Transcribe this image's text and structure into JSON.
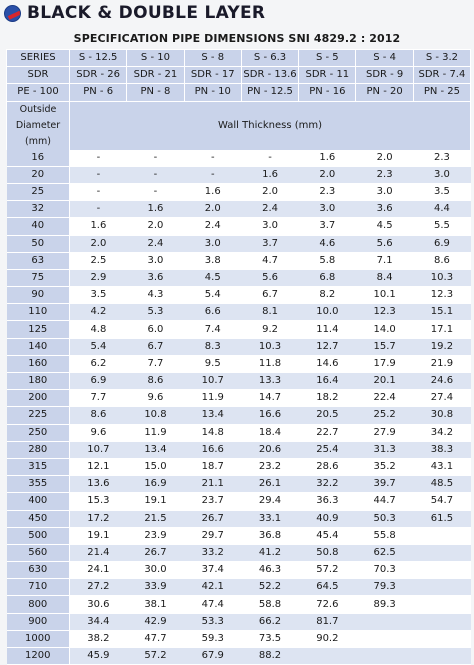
{
  "header": {
    "title": "BLACK & DOUBLE LAYER",
    "subtitle": "SPECIFICATION PIPE DIMENSIONS SNI 4829.2 : 2012"
  },
  "table": {
    "series_label": "SERIES",
    "series": [
      "S - 12.5",
      "S - 10",
      "S - 8",
      "S - 6.3",
      "S - 5",
      "S - 4",
      "S - 3.2"
    ],
    "sdr_label": "SDR",
    "sdr": [
      "SDR - 26",
      "SDR - 21",
      "SDR - 17",
      "SDR - 13.6",
      "SDR - 11",
      "SDR - 9",
      "SDR - 7.4"
    ],
    "pe_label": "PE - 100",
    "pn": [
      "PN - 6",
      "PN - 8",
      "PN - 10",
      "PN - 12.5",
      "PN - 16",
      "PN - 20",
      "PN - 25"
    ],
    "od_label": "Outside Diameter (mm)",
    "wt_label": "Wall Thickness (mm)",
    "rows": [
      {
        "od": "16",
        "v": [
          "-",
          "-",
          "-",
          "-",
          "1.6",
          "2.0",
          "2.3"
        ]
      },
      {
        "od": "20",
        "v": [
          "-",
          "-",
          "-",
          "1.6",
          "2.0",
          "2.3",
          "3.0"
        ]
      },
      {
        "od": "25",
        "v": [
          "-",
          "-",
          "1.6",
          "2.0",
          "2.3",
          "3.0",
          "3.5"
        ]
      },
      {
        "od": "32",
        "v": [
          "-",
          "1.6",
          "2.0",
          "2.4",
          "3.0",
          "3.6",
          "4.4"
        ]
      },
      {
        "od": "40",
        "v": [
          "1.6",
          "2.0",
          "2.4",
          "3.0",
          "3.7",
          "4.5",
          "5.5"
        ]
      },
      {
        "od": "50",
        "v": [
          "2.0",
          "2.4",
          "3.0",
          "3.7",
          "4.6",
          "5.6",
          "6.9"
        ]
      },
      {
        "od": "63",
        "v": [
          "2.5",
          "3.0",
          "3.8",
          "4.7",
          "5.8",
          "7.1",
          "8.6"
        ]
      },
      {
        "od": "75",
        "v": [
          "2.9",
          "3.6",
          "4.5",
          "5.6",
          "6.8",
          "8.4",
          "10.3"
        ]
      },
      {
        "od": "90",
        "v": [
          "3.5",
          "4.3",
          "5.4",
          "6.7",
          "8.2",
          "10.1",
          "12.3"
        ]
      },
      {
        "od": "110",
        "v": [
          "4.2",
          "5.3",
          "6.6",
          "8.1",
          "10.0",
          "12.3",
          "15.1"
        ]
      },
      {
        "od": "125",
        "v": [
          "4.8",
          "6.0",
          "7.4",
          "9.2",
          "11.4",
          "14.0",
          "17.1"
        ]
      },
      {
        "od": "140",
        "v": [
          "5.4",
          "6.7",
          "8.3",
          "10.3",
          "12.7",
          "15.7",
          "19.2"
        ]
      },
      {
        "od": "160",
        "v": [
          "6.2",
          "7.7",
          "9.5",
          "11.8",
          "14.6",
          "17.9",
          "21.9"
        ]
      },
      {
        "od": "180",
        "v": [
          "6.9",
          "8.6",
          "10.7",
          "13.3",
          "16.4",
          "20.1",
          "24.6"
        ]
      },
      {
        "od": "200",
        "v": [
          "7.7",
          "9.6",
          "11.9",
          "14.7",
          "18.2",
          "22.4",
          "27.4"
        ]
      },
      {
        "od": "225",
        "v": [
          "8.6",
          "10.8",
          "13.4",
          "16.6",
          "20.5",
          "25.2",
          "30.8"
        ]
      },
      {
        "od": "250",
        "v": [
          "9.6",
          "11.9",
          "14.8",
          "18.4",
          "22.7",
          "27.9",
          "34.2"
        ]
      },
      {
        "od": "280",
        "v": [
          "10.7",
          "13.4",
          "16.6",
          "20.6",
          "25.4",
          "31.3",
          "38.3"
        ]
      },
      {
        "od": "315",
        "v": [
          "12.1",
          "15.0",
          "18.7",
          "23.2",
          "28.6",
          "35.2",
          "43.1"
        ]
      },
      {
        "od": "355",
        "v": [
          "13.6",
          "16.9",
          "21.1",
          "26.1",
          "32.2",
          "39.7",
          "48.5"
        ]
      },
      {
        "od": "400",
        "v": [
          "15.3",
          "19.1",
          "23.7",
          "29.4",
          "36.3",
          "44.7",
          "54.7"
        ]
      },
      {
        "od": "450",
        "v": [
          "17.2",
          "21.5",
          "26.7",
          "33.1",
          "40.9",
          "50.3",
          "61.5"
        ]
      },
      {
        "od": "500",
        "v": [
          "19.1",
          "23.9",
          "29.7",
          "36.8",
          "45.4",
          "55.8",
          ""
        ]
      },
      {
        "od": "560",
        "v": [
          "21.4",
          "26.7",
          "33.2",
          "41.2",
          "50.8",
          "62.5",
          ""
        ]
      },
      {
        "od": "630",
        "v": [
          "24.1",
          "30.0",
          "37.4",
          "46.3",
          "57.2",
          "70.3",
          ""
        ]
      },
      {
        "od": "710",
        "v": [
          "27.2",
          "33.9",
          "42.1",
          "52.2",
          "64.5",
          "79.3",
          ""
        ]
      },
      {
        "od": "800",
        "v": [
          "30.6",
          "38.1",
          "47.4",
          "58.8",
          "72.6",
          "89.3",
          ""
        ]
      },
      {
        "od": "900",
        "v": [
          "34.4",
          "42.9",
          "53.3",
          "66.2",
          "81.7",
          "",
          ""
        ]
      },
      {
        "od": "1000",
        "v": [
          "38.2",
          "47.7",
          "59.3",
          "73.5",
          "90.2",
          "",
          ""
        ]
      },
      {
        "od": "1200",
        "v": [
          "45.9",
          "57.2",
          "67.9",
          "88.2",
          "",
          "",
          ""
        ]
      }
    ]
  }
}
